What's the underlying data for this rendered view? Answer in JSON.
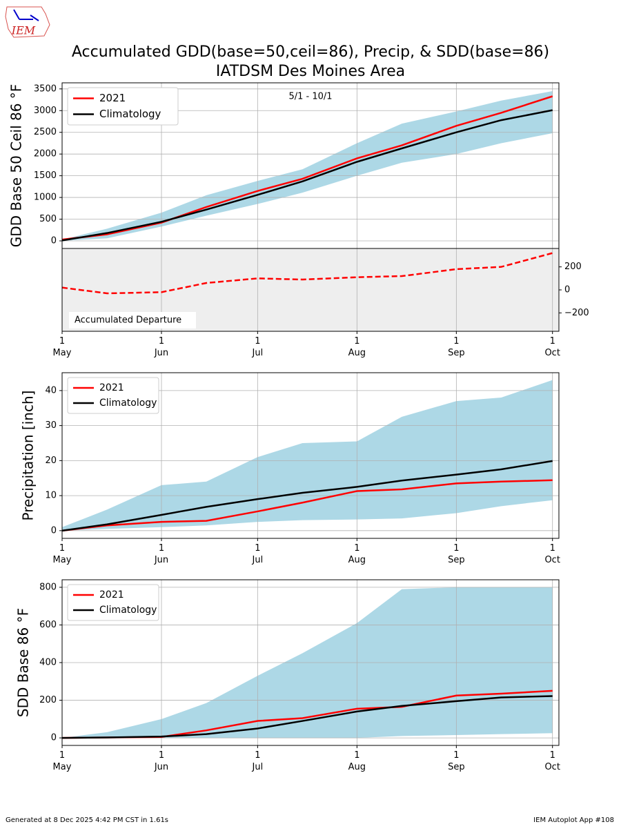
{
  "logo": "IEM",
  "title": "Accumulated GDD(base=50,ceil=86), Precip, & SDD(base=86)",
  "subtitle": "IATDSM Des Moines Area",
  "footer_left": "Generated at 8 Dec 2025 4:42 PM CST in 1.61s",
  "footer_right": "IEM Autoplot App #108",
  "chart_data": [
    {
      "type": "line",
      "ylabel": "GDD Base 50 Ceil 86 °F",
      "annotation": "5/1 - 10/1",
      "grid": true,
      "legend": "upper left",
      "x": [
        "05-01",
        "05-15",
        "06-01",
        "06-15",
        "07-01",
        "07-15",
        "08-01",
        "08-15",
        "09-01",
        "09-15",
        "10-01"
      ],
      "xlim": [
        "05-01",
        "10-03"
      ],
      "xticks": [
        "05-01",
        "06-01",
        "07-01",
        "08-01",
        "09-01",
        "10-01"
      ],
      "xticklabels": false,
      "ylim": [
        -175,
        3640
      ],
      "yticks": [
        0,
        500,
        1000,
        1500,
        2000,
        2500,
        3000,
        3500
      ],
      "band": {
        "color": "#add8e6",
        "lower": [
          0,
          60,
          330,
          580,
          850,
          1110,
          1500,
          1800,
          2000,
          2250,
          2480
        ],
        "upper": [
          30,
          280,
          650,
          1050,
          1380,
          1650,
          2250,
          2700,
          2980,
          3230,
          3450
        ]
      },
      "series": [
        {
          "name": "2021",
          "color": "#ff0000",
          "values": [
            30,
            150,
            420,
            780,
            1150,
            1430,
            1900,
            2200,
            2650,
            2950,
            3330
          ]
        },
        {
          "name": "Climatology",
          "color": "#000000",
          "values": [
            10,
            180,
            440,
            720,
            1060,
            1370,
            1820,
            2130,
            2500,
            2780,
            3010
          ]
        }
      ]
    },
    {
      "type": "line",
      "yaxis": "right",
      "annotation": "Accumulated Departure",
      "background": "#eeeeee",
      "grid": true,
      "x": [
        "05-01",
        "05-15",
        "06-01",
        "06-15",
        "07-01",
        "07-15",
        "08-01",
        "08-15",
        "09-01",
        "09-15",
        "10-01"
      ],
      "xlim": [
        "05-01",
        "10-03"
      ],
      "xticks": [
        {
          "value": "05-01",
          "label": "1\nMay"
        },
        {
          "value": "06-01",
          "label": "1\nJun"
        },
        {
          "value": "07-01",
          "label": "1\nJul"
        },
        {
          "value": "08-01",
          "label": "1\nAug"
        },
        {
          "value": "09-01",
          "label": "1\nSep"
        },
        {
          "value": "10-01",
          "label": "1\nOct"
        }
      ],
      "xticklabels": true,
      "ylim": [
        -360,
        360
      ],
      "yticks": [
        {
          "value": -200,
          "label": "−200"
        },
        0,
        200
      ],
      "series": [
        {
          "color": "#ff0000",
          "linestyle": "dashed",
          "values": [
            20,
            -30,
            -20,
            60,
            100,
            90,
            110,
            120,
            180,
            200,
            320
          ]
        }
      ]
    },
    {
      "type": "line",
      "ylabel": "Precipitation [inch]",
      "grid": true,
      "legend": "upper left",
      "x": [
        "05-01",
        "05-15",
        "06-01",
        "06-15",
        "07-01",
        "07-15",
        "08-01",
        "08-15",
        "09-01",
        "09-15",
        "10-01"
      ],
      "xlim": [
        "05-01",
        "10-03"
      ],
      "xticks": [
        {
          "value": "05-01",
          "label": "1\nMay"
        },
        {
          "value": "06-01",
          "label": "1\nJun"
        },
        {
          "value": "07-01",
          "label": "1\nJul"
        },
        {
          "value": "08-01",
          "label": "1\nAug"
        },
        {
          "value": "09-01",
          "label": "1\nSep"
        },
        {
          "value": "10-01",
          "label": "1\nOct"
        }
      ],
      "xticklabels": true,
      "ylim": [
        -2.2,
        45.1
      ],
      "yticks": [
        0,
        10,
        20,
        30,
        40
      ],
      "band": {
        "color": "#add8e6",
        "lower": [
          0,
          0.5,
          1,
          1.5,
          2.5,
          3,
          3.2,
          3.5,
          5,
          7,
          8.7
        ],
        "upper": [
          1,
          6,
          13,
          14,
          21,
          25,
          25.5,
          32.5,
          37,
          38,
          43
        ]
      },
      "series": [
        {
          "name": "2021",
          "color": "#ff0000",
          "values": [
            0,
            1.5,
            2.5,
            2.8,
            5.5,
            8,
            11.3,
            11.8,
            13.5,
            14,
            14.4
          ]
        },
        {
          "name": "Climatology",
          "color": "#000000",
          "values": [
            0,
            1.8,
            4.5,
            6.8,
            9,
            10.8,
            12.5,
            14.3,
            16,
            17.5,
            19.9
          ]
        }
      ]
    },
    {
      "type": "line",
      "ylabel": "SDD Base 86 °F",
      "grid": true,
      "legend": "upper left",
      "x": [
        "05-01",
        "05-15",
        "06-01",
        "06-15",
        "07-01",
        "07-15",
        "08-01",
        "08-15",
        "09-01",
        "09-15",
        "10-01"
      ],
      "xlim": [
        "05-01",
        "10-03"
      ],
      "xticks": [
        {
          "value": "05-01",
          "label": "1\nMay"
        },
        {
          "value": "06-01",
          "label": "1\nJun"
        },
        {
          "value": "07-01",
          "label": "1\nJul"
        },
        {
          "value": "08-01",
          "label": "1\nAug"
        },
        {
          "value": "09-01",
          "label": "1\nSep"
        },
        {
          "value": "10-01",
          "label": "1\nOct"
        }
      ],
      "xticklabels": true,
      "ylim": [
        -40,
        840
      ],
      "yticks": [
        0,
        200,
        400,
        600,
        800
      ],
      "band": {
        "color": "#add8e6",
        "lower": [
          0,
          0,
          0,
          0,
          0,
          0,
          0,
          10,
          15,
          20,
          25
        ],
        "upper": [
          0,
          30,
          100,
          185,
          330,
          450,
          610,
          790,
          800,
          800,
          800
        ]
      },
      "series": [
        {
          "name": "2021",
          "color": "#ff0000",
          "values": [
            0,
            2,
            5,
            40,
            90,
            105,
            155,
            165,
            225,
            235,
            250
          ]
        },
        {
          "name": "Climatology",
          "color": "#000000",
          "values": [
            0,
            2,
            7,
            20,
            50,
            90,
            140,
            170,
            195,
            215,
            222
          ]
        }
      ]
    }
  ]
}
